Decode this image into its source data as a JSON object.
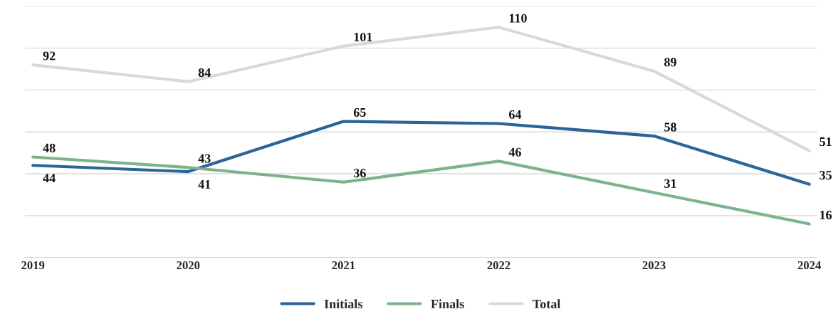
{
  "chart_data": {
    "type": "line",
    "categories": [
      "2019",
      "2020",
      "2021",
      "2022",
      "2023",
      "2024"
    ],
    "series": [
      {
        "name": "Initials",
        "color": "#2b6496",
        "values": [
          44,
          41,
          65,
          64,
          58,
          35
        ]
      },
      {
        "name": "Finals",
        "color": "#7db38c",
        "values": [
          48,
          43,
          36,
          46,
          31,
          16
        ]
      },
      {
        "name": "Total",
        "color": "#d9d9d9",
        "values": [
          92,
          84,
          101,
          110,
          89,
          51
        ]
      }
    ],
    "ylim": [
      0,
      120
    ],
    "yticks": [
      {
        "value": 0,
        "label": null
      },
      {
        "value": 20,
        "label": null
      },
      {
        "value": 40,
        "label": null
      },
      {
        "value": 60,
        "label": null
      },
      {
        "value": 80,
        "label": null
      },
      {
        "value": 100,
        "label": null
      },
      {
        "value": 120,
        "label": null
      }
    ],
    "tick_labels": "x",
    "grid": "y",
    "legend": "bottom",
    "data_labels": true,
    "marker": "none",
    "line_style": "solid"
  }
}
